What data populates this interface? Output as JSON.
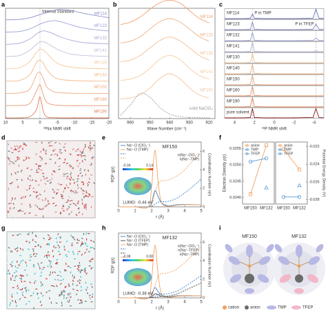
{
  "panel_labels": [
    "a",
    "b",
    "c",
    "d",
    "e",
    "f",
    "g",
    "h",
    "i"
  ],
  "chart_data": [
    {
      "type": "line",
      "offset": true,
      "xlabel": "²³Na NMR shift",
      "xlim": [
        10,
        -20
      ],
      "xticks": [
        10,
        5,
        0,
        -5,
        -10,
        -15,
        -20
      ],
      "x": [
        10,
        6,
        3,
        1,
        0,
        -1,
        -2,
        -4,
        -6,
        -9,
        -13,
        -20
      ],
      "annotations": [
        {
          "text": "Internal Standard",
          "x": 0
        }
      ],
      "series": [
        {
          "name": "MF114",
          "color": "#8b8fc9",
          "values": [
            0,
            0.02,
            0.1,
            0.2,
            0.25,
            0.3,
            0.35,
            0.45,
            0.5,
            0.45,
            0.3,
            0.1
          ]
        },
        {
          "name": "MF123",
          "color": "#9aa0d6",
          "values": [
            0,
            0.03,
            0.15,
            0.3,
            0.38,
            0.45,
            0.5,
            0.55,
            0.5,
            0.35,
            0.18,
            0.05
          ]
        },
        {
          "name": "MF132",
          "color": "#a7a8d8",
          "values": [
            0,
            0.05,
            0.25,
            0.5,
            0.6,
            0.65,
            0.62,
            0.5,
            0.35,
            0.2,
            0.08,
            0.02
          ]
        },
        {
          "name": "MF141",
          "color": "#c5bfd9",
          "values": [
            0,
            0.05,
            0.3,
            0.6,
            0.7,
            0.72,
            0.65,
            0.45,
            0.28,
            0.12,
            0.05,
            0.01
          ]
        },
        {
          "name": "MF130",
          "color": "#f3c89a",
          "values": [
            0,
            0.05,
            0.35,
            0.8,
            0.95,
            0.9,
            0.75,
            0.4,
            0.2,
            0.08,
            0.03,
            0
          ]
        },
        {
          "name": "MF140",
          "color": "#f2b98a",
          "values": [
            0,
            0.03,
            0.3,
            0.9,
            1,
            0.85,
            0.55,
            0.2,
            0.08,
            0.03,
            0.01,
            0
          ]
        },
        {
          "name": "MF150",
          "color": "#f0a980",
          "values": [
            0,
            0.02,
            0.2,
            0.9,
            1,
            0.7,
            0.3,
            0.08,
            0.03,
            0.01,
            0,
            0
          ]
        },
        {
          "name": "MF160",
          "color": "#ec9670",
          "values": [
            0,
            0.01,
            0.1,
            0.7,
            1,
            0.5,
            0.15,
            0.04,
            0.01,
            0,
            0,
            0
          ]
        },
        {
          "name": "MF190",
          "color": "#e07a58",
          "values": [
            0,
            0,
            0.05,
            0.4,
            1,
            0.3,
            0.05,
            0.01,
            0,
            0,
            0,
            0
          ]
        }
      ]
    },
    {
      "type": "line",
      "offset": true,
      "xlabel": "Wave Number (cm⁻¹)",
      "xlim": [
        966,
        917
      ],
      "xticks": [
        960,
        950,
        940,
        930,
        920
      ],
      "x": [
        965,
        960,
        955,
        950,
        945,
        940,
        935,
        930,
        925,
        920
      ],
      "series": [
        {
          "name": "MF114",
          "color": "#f0a070",
          "values": [
            0.05,
            0.15,
            0.35,
            0.65,
            0.9,
            1,
            0.9,
            0.6,
            0.3,
            0.12
          ]
        },
        {
          "name": "MF123",
          "color": "#f2b080",
          "values": [
            0.05,
            0.12,
            0.3,
            0.6,
            0.88,
            1,
            0.88,
            0.6,
            0.3,
            0.12
          ]
        },
        {
          "name": "MF132",
          "color": "#f4be90",
          "values": [
            0.04,
            0.1,
            0.28,
            0.58,
            0.86,
            1,
            0.86,
            0.58,
            0.28,
            0.1
          ]
        },
        {
          "name": "MF141",
          "color": "#f6cca0",
          "values": [
            0.03,
            0.08,
            0.22,
            0.5,
            0.85,
            1,
            0.85,
            0.5,
            0.22,
            0.08
          ]
        },
        {
          "name": "MF150",
          "color": "#f2c4a0",
          "values": [
            0.02,
            0.06,
            0.18,
            0.45,
            0.82,
            1,
            0.82,
            0.45,
            0.18,
            0.06
          ]
        },
        {
          "name": "solid NaClO₄",
          "color": "#999999",
          "style": "dashed",
          "values": [
            0.1,
            0.5,
            0.95,
            0.8,
            0.4,
            0.15,
            0.05,
            0.02,
            0.01,
            0
          ]
        }
      ]
    },
    {
      "type": "line",
      "offset": true,
      "xlabel": "³¹P NMR shift",
      "xlim": [
        5,
        -5
      ],
      "xticks": [
        4,
        2,
        0,
        -2,
        -4
      ],
      "x": [
        5,
        3,
        2.4,
        2.2,
        2,
        1,
        0,
        -2,
        -3.9,
        -4.2,
        -4.5,
        -5
      ],
      "annotations": [
        {
          "text": "P in TMP",
          "x": 2.2
        },
        {
          "text": "P in TFEP",
          "x": -4.2
        }
      ],
      "series": [
        {
          "name": "MF114",
          "color": "#6a6fb8",
          "values": [
            0,
            0,
            0.05,
            0.5,
            0.05,
            0,
            0,
            0,
            0.05,
            1,
            0.05,
            0
          ]
        },
        {
          "name": "MF123",
          "color": "#7f84c4",
          "values": [
            0,
            0,
            0.05,
            0.8,
            0.05,
            0,
            0,
            0,
            0.05,
            0.6,
            0.05,
            0
          ]
        },
        {
          "name": "MF132",
          "color": "#9499cf",
          "values": [
            0,
            0,
            0.05,
            0.9,
            0.05,
            0,
            0,
            0,
            0.03,
            0.3,
            0.03,
            0
          ]
        },
        {
          "name": "MF141",
          "color": "#b0b0d8",
          "values": [
            0,
            0,
            0.05,
            1,
            0.05,
            0,
            0,
            0,
            0,
            0.1,
            0,
            0
          ]
        },
        {
          "name": "MF130",
          "color": "#f0c090",
          "values": [
            0,
            0,
            0.05,
            1,
            0.05,
            0,
            0,
            0,
            0,
            0,
            0,
            0
          ]
        },
        {
          "name": "MF140",
          "color": "#eeb080",
          "values": [
            0,
            0,
            0.05,
            1,
            0.05,
            0,
            0,
            0,
            0,
            0,
            0,
            0
          ]
        },
        {
          "name": "MF150",
          "color": "#eba070",
          "values": [
            0,
            0,
            0.05,
            1,
            0.05,
            0,
            0,
            0,
            0,
            0,
            0,
            0
          ]
        },
        {
          "name": "MF160",
          "color": "#e89060",
          "values": [
            0,
            0,
            0.05,
            1,
            0.05,
            0,
            0,
            0,
            0,
            0,
            0,
            0
          ]
        },
        {
          "name": "MF190",
          "color": "#e08050",
          "values": [
            0,
            0,
            0.05,
            1,
            0.05,
            0,
            0,
            0,
            0,
            0,
            0,
            0
          ]
        },
        {
          "name": "pure solvent",
          "color": "#8b1a1a",
          "values": [
            0,
            0,
            0.05,
            1,
            0.05,
            0,
            0,
            0,
            0.05,
            1,
            0.05,
            0
          ]
        }
      ]
    },
    {
      "type": "line",
      "title": "MF150",
      "xlabel": "r (Å)",
      "ylabel": "RDF g(r)",
      "y2label": "Coordination Number n(r)",
      "xlim": [
        0,
        5
      ],
      "xticks": [
        0,
        1,
        2,
        3,
        4,
        5
      ],
      "ylim": [
        0,
        32
      ],
      "y2lim": [
        0,
        7
      ],
      "y2ticks": [
        0,
        2,
        4,
        6
      ],
      "x": [
        0,
        1,
        1.8,
        2,
        2.2,
        2.4,
        2.6,
        3,
        3.5,
        4,
        4.5,
        5
      ],
      "series": [
        {
          "name": "Na⁺-O (ClO₄⁻)",
          "color": "#3b7dc4",
          "values": [
            0,
            0,
            0,
            2,
            8,
            5,
            2,
            0.5,
            1,
            1.2,
            1.1,
            1
          ]
        },
        {
          "name": "Na⁺-O (TMP)",
          "color": "#f0a060",
          "values": [
            0,
            0,
            0,
            10,
            28,
            12,
            2,
            0.3,
            0.8,
            1.1,
            1.05,
            1
          ]
        },
        {
          "name": "n(Na⁺-ClO₄⁻)",
          "color": "#3b7dc4",
          "style": "dashed",
          "axis": "y2",
          "values": [
            0,
            0,
            0,
            0,
            0.3,
            0.5,
            0.55,
            0.6,
            0.9,
            1.5,
            2.2,
            3
          ]
        },
        {
          "name": "n(Na⁺-TMP)",
          "color": "#f0a060",
          "style": "dashed",
          "axis": "y2",
          "values": [
            0,
            0,
            0,
            0.1,
            1.5,
            2.5,
            2.8,
            2.9,
            3.3,
            4,
            5,
            5.8
          ]
        }
      ],
      "inset": {
        "colorbar_labels": [
          "-0.04",
          "0.14"
        ],
        "caption": "LUMO: -0.44 eV"
      }
    },
    {
      "type": "line",
      "ylabel": "Electron Density ρ(r)",
      "categories": [
        "MF150",
        "MF132"
      ],
      "ylim": [
        0.0238,
        0.0257
      ],
      "yticks": [
        {
          "value": 0.024,
          "label": "0.0240"
        },
        {
          "value": 0.0245,
          "label": "0.0245"
        },
        {
          "value": 0.025,
          "label": "0.0250"
        },
        {
          "value": 0.0255,
          "label": "0.0255"
        }
      ],
      "series": [
        {
          "name": "anion",
          "color": "#f0a060",
          "marker": "square",
          "values": [
            0.0241,
            0.0256
          ]
        },
        {
          "name": "TMP",
          "color": "#5b9bd5",
          "marker": "circle",
          "values": [
            0.0251,
            0.0252
          ]
        },
        {
          "name": "TFEP",
          "color": "#5b9bd5",
          "marker": "triangle",
          "values": [
            null,
            0.0243
          ]
        }
      ]
    },
    {
      "type": "line",
      "y2label": "Potential Energy Density (V)",
      "categories": [
        "MF150",
        "MF132"
      ],
      "y2lim": [
        -0.0285,
        -0.0215
      ],
      "y2ticks": [
        -0.022,
        -0.024,
        -0.026,
        -0.028
      ],
      "series": [
        {
          "name": "anion",
          "color": "#f0a060",
          "marker": "square",
          "axis": "y2",
          "values": [
            -0.0223,
            -0.0246
          ]
        },
        {
          "name": "TMP",
          "color": "#5b9bd5",
          "marker": "circle",
          "axis": "y2",
          "values": [
            -0.0277,
            -0.0277
          ]
        },
        {
          "name": "TFEP",
          "color": "#5b9bd5",
          "marker": "triangle",
          "axis": "y2",
          "values": [
            null,
            -0.0264
          ]
        }
      ]
    },
    {
      "type": "line",
      "title": "MF132",
      "xlabel": "r (Å)",
      "ylabel": "RDF g(r)",
      "y2label": "Coordination Number n(r)",
      "xlim": [
        0,
        5
      ],
      "xticks": [
        0,
        1,
        2,
        3,
        4,
        5
      ],
      "ylim": [
        0,
        32
      ],
      "y2lim": [
        0,
        7
      ],
      "y2ticks": [
        0,
        2,
        4,
        6
      ],
      "x": [
        0,
        1,
        1.8,
        2,
        2.2,
        2.4,
        2.6,
        3,
        3.5,
        4,
        4.5,
        5
      ],
      "series": [
        {
          "name": "Na⁺-O (ClO₄⁻)",
          "color": "#3b7dc4",
          "values": [
            0,
            0,
            0,
            1.5,
            5,
            3,
            1.5,
            0.5,
            1,
            1.1,
            1.05,
            1
          ]
        },
        {
          "name": "Na⁺-O (TFEP)",
          "color": "#444444",
          "values": [
            0,
            0,
            0,
            0.5,
            2,
            1.5,
            0.8,
            0.4,
            0.8,
            1,
            1,
            1
          ]
        },
        {
          "name": "Na⁺-O (TMP)",
          "color": "#f0a060",
          "values": [
            0,
            0,
            0,
            9,
            26,
            11,
            2,
            0.3,
            0.8,
            1.1,
            1.05,
            1
          ]
        },
        {
          "name": "n(Na⁺-ClO₄⁻)",
          "color": "#3b7dc4",
          "style": "dashed",
          "axis": "y2",
          "values": [
            0,
            0,
            0,
            0,
            0.2,
            0.35,
            0.4,
            0.45,
            0.7,
            1.2,
            1.8,
            2.4
          ]
        },
        {
          "name": "n(Na⁺-TFEP)",
          "color": "#444444",
          "style": "dashed",
          "axis": "y2",
          "values": [
            0,
            0,
            0,
            0,
            0.05,
            0.1,
            0.15,
            0.2,
            0.4,
            0.8,
            1.2,
            1.6
          ]
        },
        {
          "name": "n(Na⁺-TMP)",
          "color": "#f0a060",
          "style": "dashed",
          "axis": "y2",
          "values": [
            0,
            0,
            0,
            0.1,
            1.3,
            2.3,
            2.6,
            2.7,
            3.1,
            3.8,
            4.7,
            5.5
          ]
        }
      ],
      "inset": {
        "colorbar_labels": [
          "-0.08",
          "0.08"
        ],
        "caption": "LUMO: -0.38 eV"
      }
    }
  ],
  "diagram_i": {
    "titles": [
      "MF150",
      "MF132"
    ],
    "legend": [
      "cation",
      "anion",
      "TMP",
      "TFEP"
    ]
  }
}
